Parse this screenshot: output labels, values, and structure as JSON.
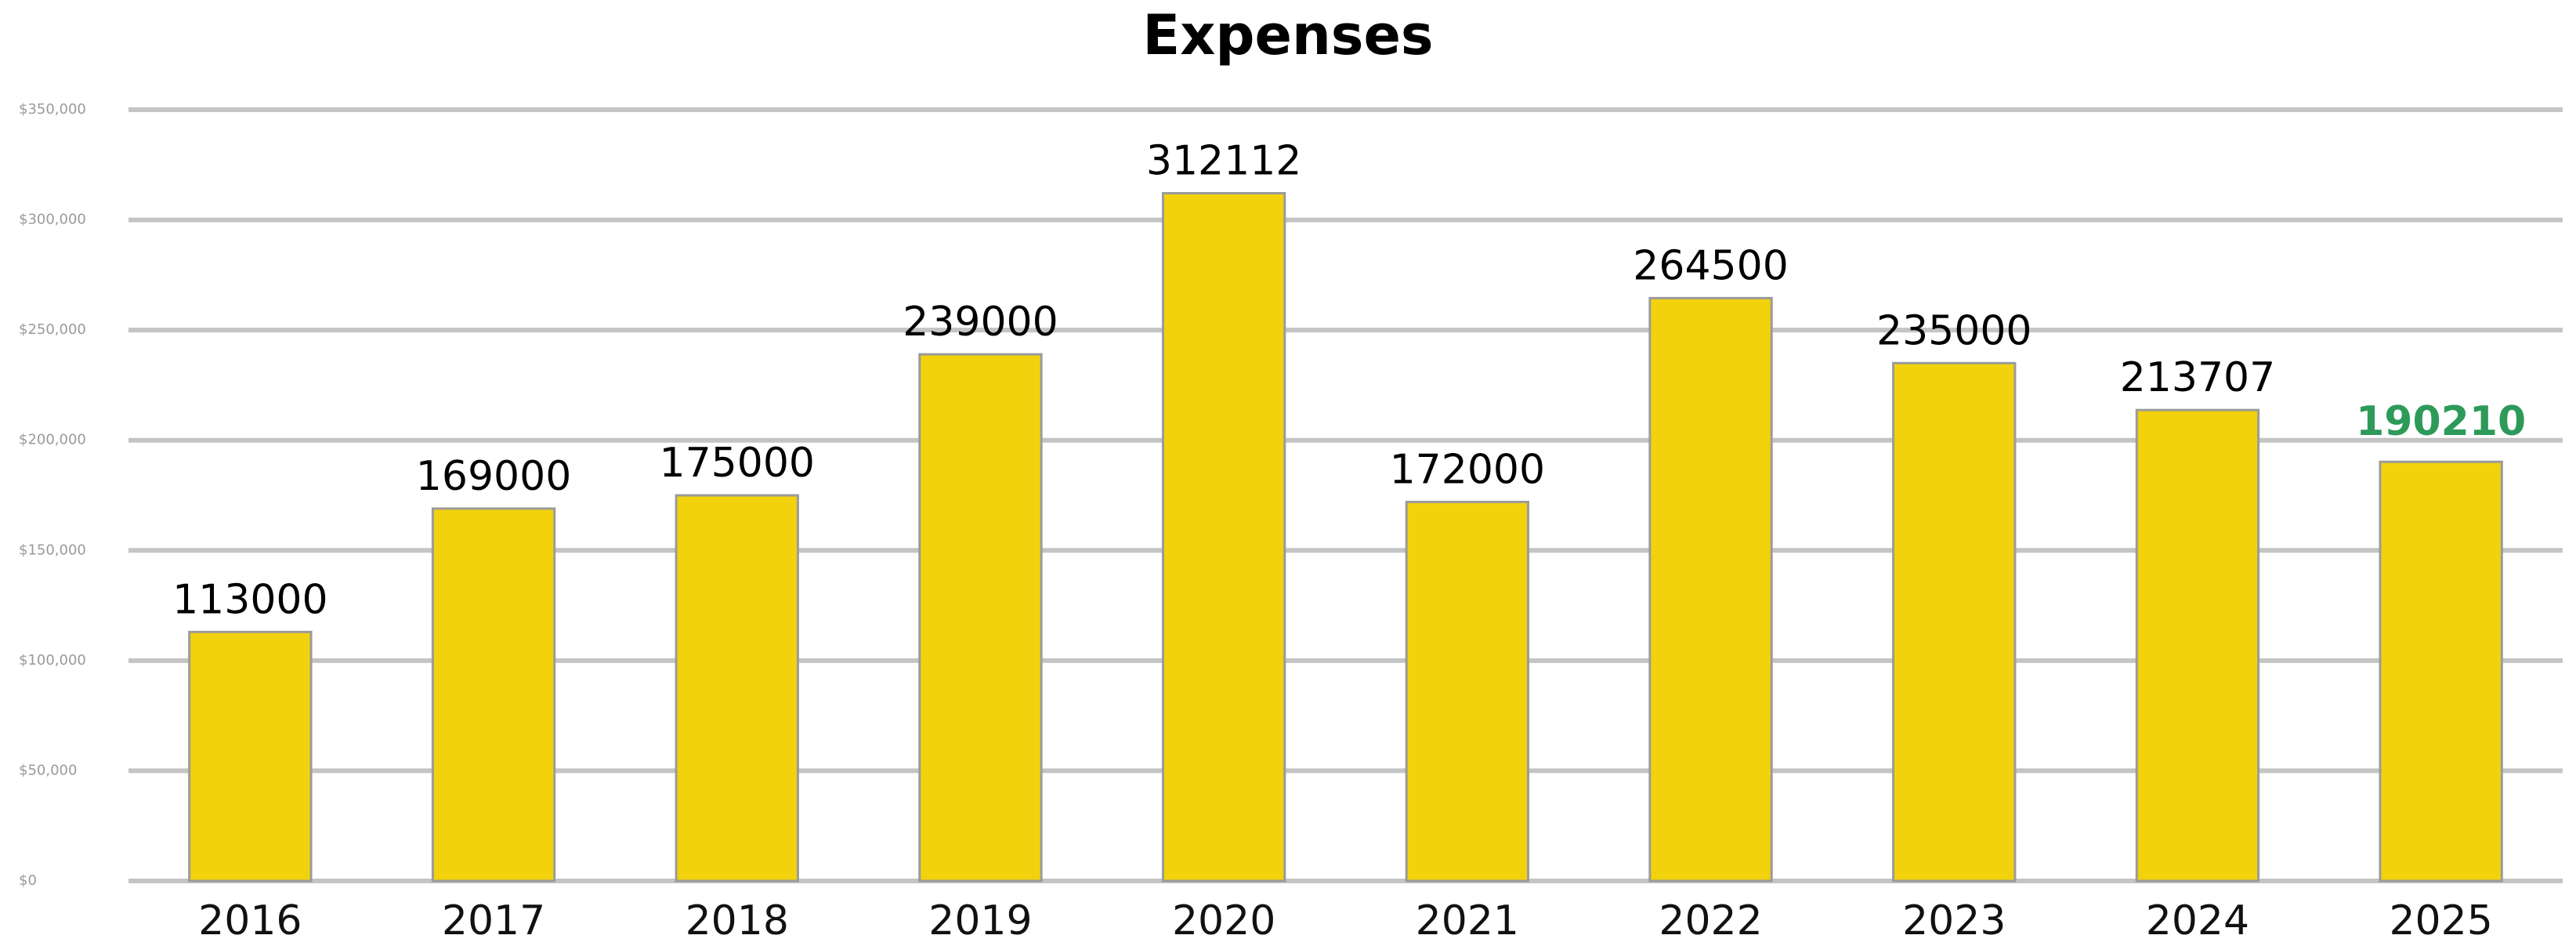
{
  "chart_data": {
    "type": "bar",
    "title": "Expenses",
    "categories": [
      "2016",
      "2017",
      "2018",
      "2019",
      "2020",
      "2021",
      "2022",
      "2023",
      "2024",
      "2025"
    ],
    "values": [
      113000,
      169000,
      175000,
      239000,
      312112,
      172000,
      264500,
      235000,
      213707,
      190210
    ],
    "value_label_colors": [
      "#000000",
      "#000000",
      "#000000",
      "#000000",
      "#000000",
      "#000000",
      "#000000",
      "#000000",
      "#000000",
      "#2e9a5a"
    ],
    "color": "#f2d20c",
    "ylim": [
      0,
      350000
    ],
    "yticks": [
      {
        "value": 0,
        "label": "$0"
      },
      {
        "value": 50000,
        "label": "$50,000"
      },
      {
        "value": 100000,
        "label": "$100,000"
      },
      {
        "value": 150000,
        "label": "$150,000"
      },
      {
        "value": 200000,
        "label": "$200,000"
      },
      {
        "value": 250000,
        "label": "$250,000"
      },
      {
        "value": 300000,
        "label": "$300,000"
      },
      {
        "value": 350000,
        "label": "$350,000"
      }
    ],
    "grid": true
  }
}
